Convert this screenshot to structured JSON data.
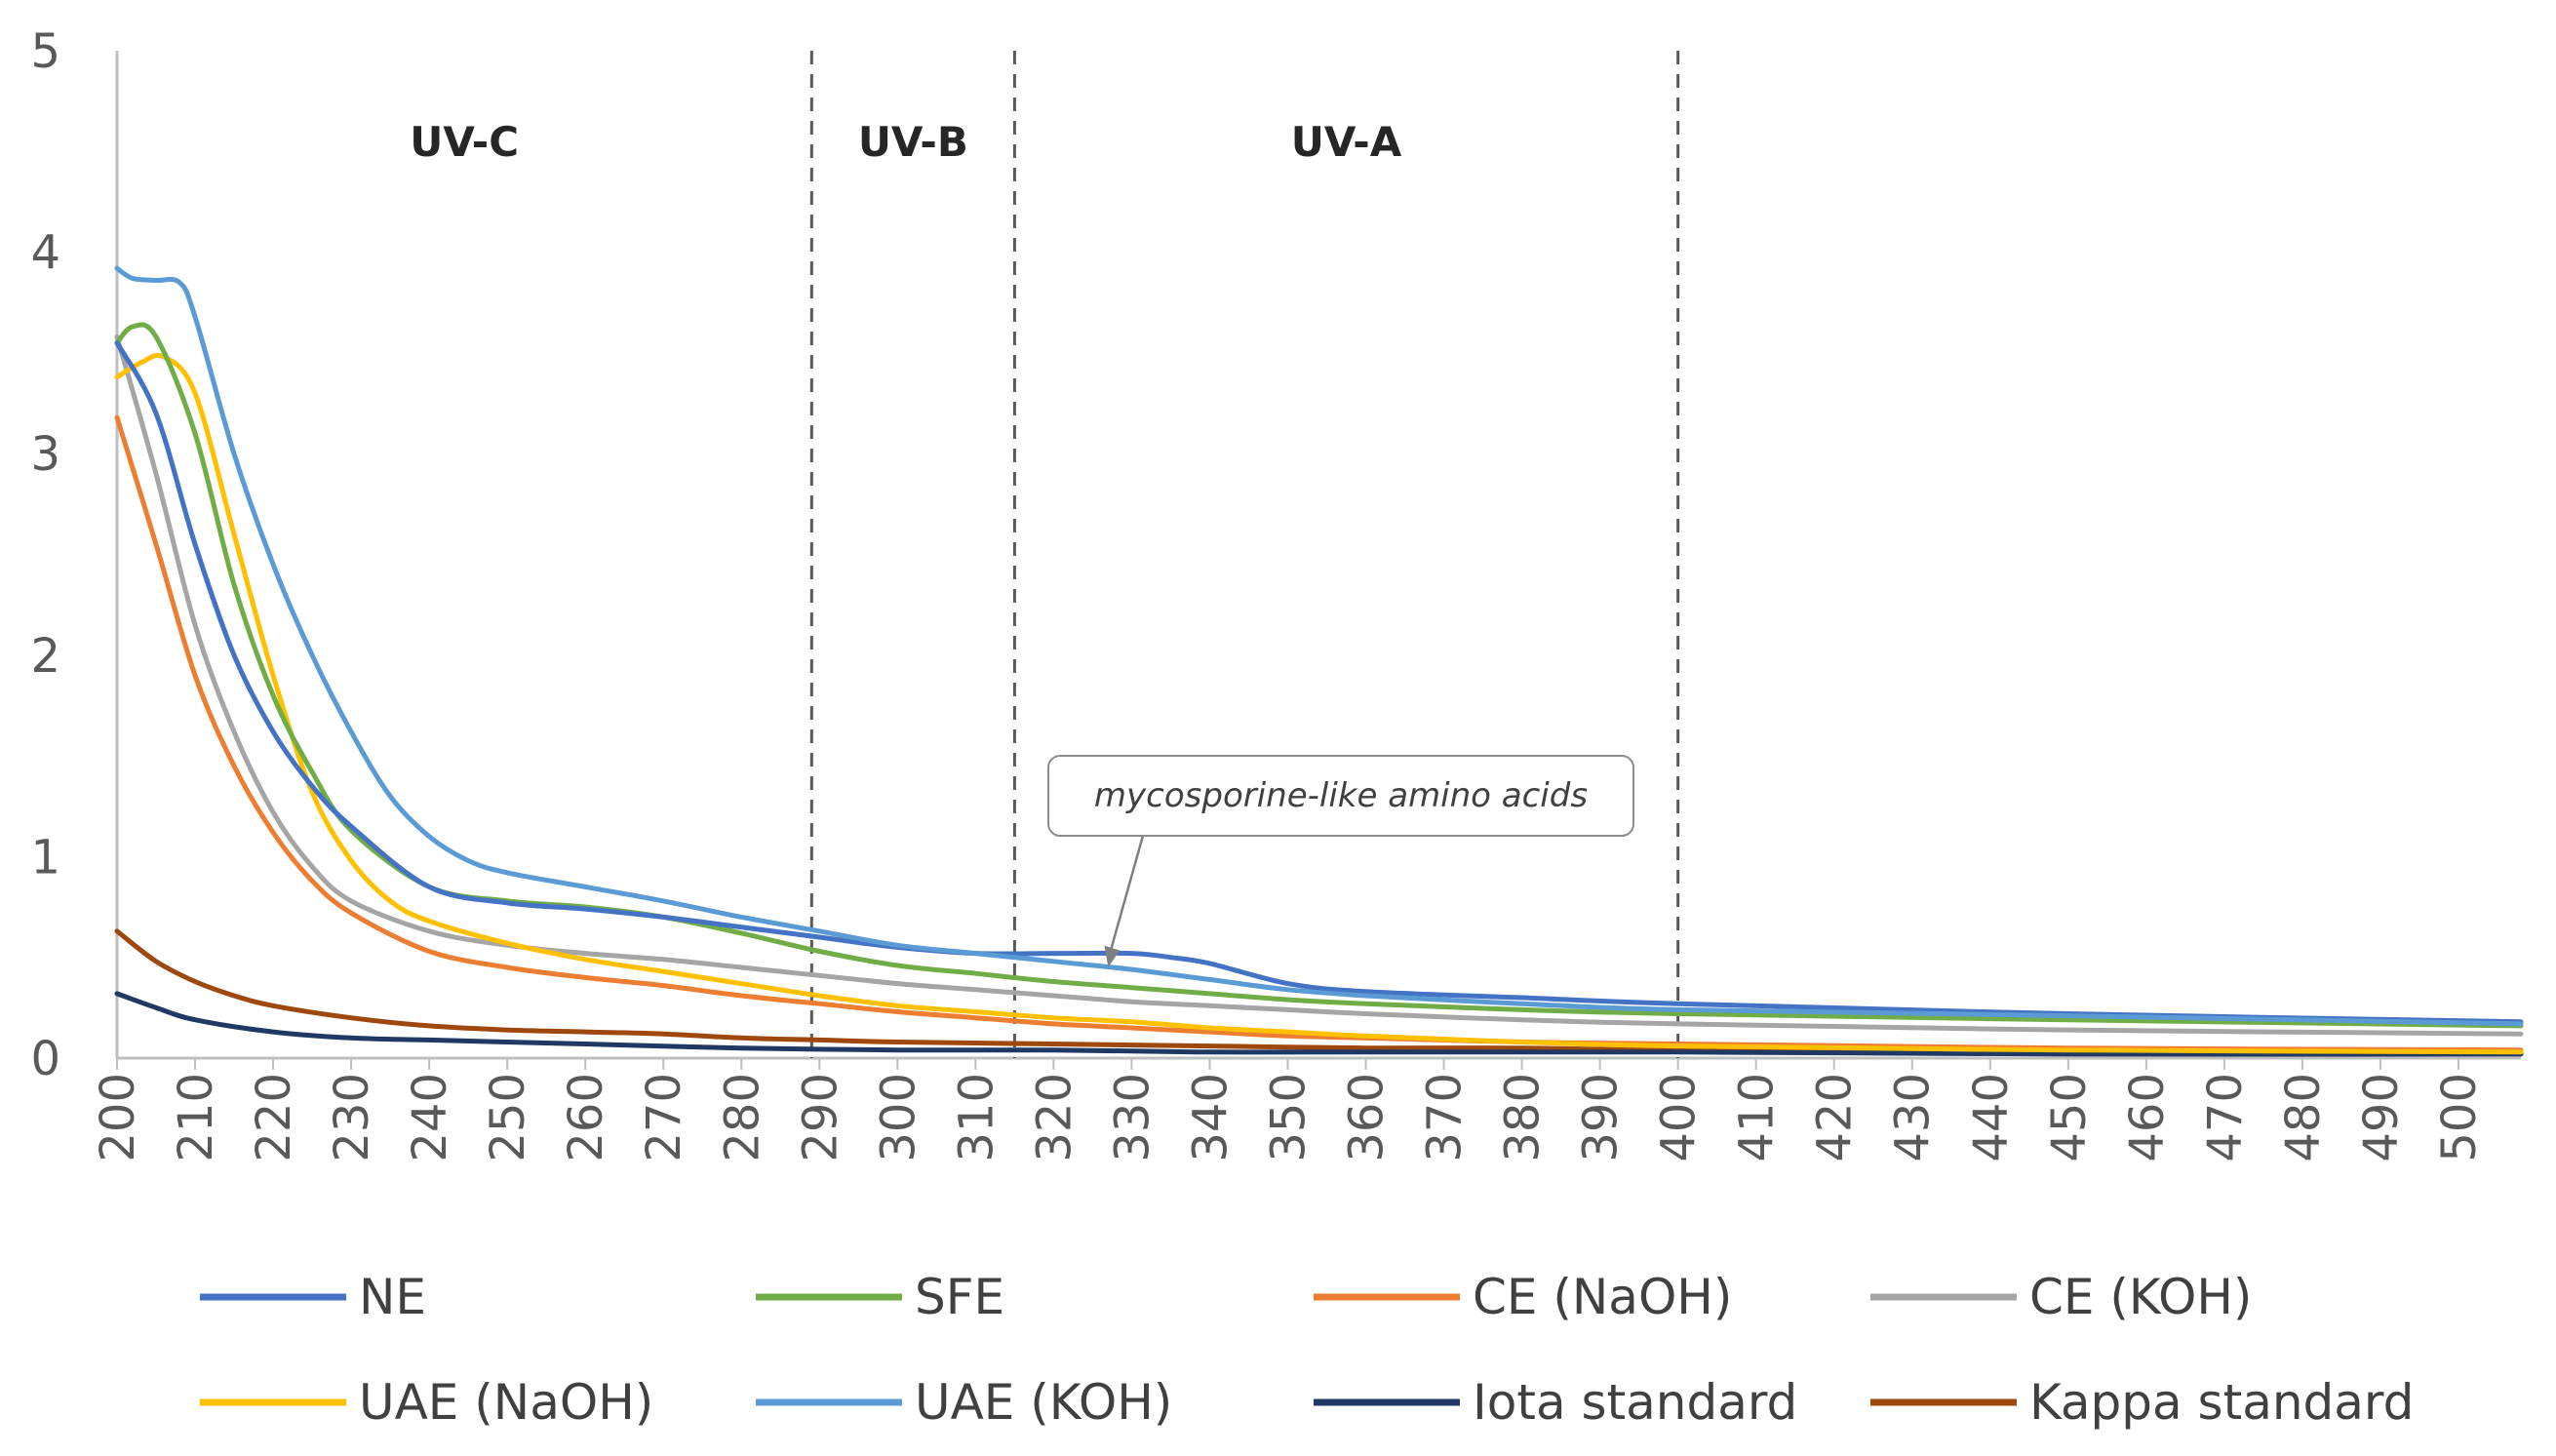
{
  "chart_data": {
    "type": "line",
    "title": "",
    "xlabel": "",
    "ylabel": "",
    "xlim": [
      200,
      508
    ],
    "ylim": [
      0,
      5
    ],
    "x_ticks": [
      200,
      210,
      220,
      230,
      240,
      250,
      260,
      270,
      280,
      290,
      300,
      310,
      320,
      330,
      340,
      350,
      360,
      370,
      380,
      390,
      400,
      410,
      420,
      430,
      440,
      450,
      460,
      470,
      480,
      490,
      500
    ],
    "y_ticks": [
      0,
      1,
      2,
      3,
      4,
      5
    ],
    "grid": false,
    "legend_position": "bottom",
    "regions": [
      {
        "label": "UV-C",
        "from": 200,
        "to": 289
      },
      {
        "label": "UV-B",
        "from": 289,
        "to": 315
      },
      {
        "label": "UV-A",
        "from": 315,
        "to": 400
      }
    ],
    "divider_lines": [
      289,
      315,
      400
    ],
    "annotation": {
      "text": "mycosporine-like amino acids",
      "points_to": [
        327,
        0.52
      ]
    },
    "series": [
      {
        "name": "NE",
        "color": "#4472C4",
        "x": [
          200,
          205,
          210,
          215,
          220,
          225,
          230,
          240,
          250,
          260,
          270,
          280,
          290,
          300,
          310,
          320,
          330,
          335,
          340,
          350,
          360,
          380,
          400,
          450,
          508
        ],
        "values": [
          3.55,
          3.2,
          2.55,
          2.0,
          1.62,
          1.35,
          1.15,
          0.85,
          0.77,
          0.74,
          0.7,
          0.65,
          0.6,
          0.55,
          0.52,
          0.52,
          0.52,
          0.5,
          0.47,
          0.37,
          0.33,
          0.3,
          0.27,
          0.22,
          0.18
        ]
      },
      {
        "name": "SFE",
        "color": "#70AD47",
        "x": [
          200,
          202,
          205,
          210,
          215,
          220,
          225,
          230,
          240,
          250,
          260,
          270,
          280,
          290,
          300,
          310,
          320,
          330,
          340,
          350,
          360,
          380,
          400,
          450,
          508
        ],
        "values": [
          3.55,
          3.63,
          3.58,
          3.1,
          2.35,
          1.8,
          1.42,
          1.13,
          0.85,
          0.78,
          0.75,
          0.7,
          0.62,
          0.53,
          0.46,
          0.42,
          0.38,
          0.35,
          0.32,
          0.29,
          0.27,
          0.24,
          0.22,
          0.19,
          0.16
        ]
      },
      {
        "name": "CE (NaOH)",
        "color": "#ED7D31",
        "x": [
          200,
          205,
          210,
          215,
          220,
          225,
          230,
          240,
          250,
          260,
          270,
          280,
          290,
          300,
          310,
          320,
          330,
          340,
          350,
          360,
          380,
          400,
          450,
          508
        ],
        "values": [
          3.18,
          2.55,
          1.9,
          1.45,
          1.12,
          0.88,
          0.72,
          0.53,
          0.45,
          0.4,
          0.36,
          0.31,
          0.27,
          0.23,
          0.2,
          0.17,
          0.15,
          0.13,
          0.11,
          0.1,
          0.08,
          0.07,
          0.05,
          0.04
        ]
      },
      {
        "name": "CE (KOH)",
        "color": "#A5A5A5",
        "x": [
          200,
          205,
          210,
          215,
          220,
          225,
          230,
          240,
          250,
          260,
          270,
          280,
          290,
          300,
          310,
          320,
          330,
          340,
          350,
          360,
          380,
          400,
          450,
          508
        ],
        "values": [
          3.58,
          2.9,
          2.15,
          1.62,
          1.22,
          0.95,
          0.78,
          0.63,
          0.56,
          0.52,
          0.49,
          0.45,
          0.41,
          0.37,
          0.34,
          0.31,
          0.28,
          0.26,
          0.24,
          0.22,
          0.19,
          0.17,
          0.14,
          0.12
        ]
      },
      {
        "name": "UAE (NaOH)",
        "color": "#FFC000",
        "x": [
          200,
          203,
          206,
          210,
          215,
          220,
          225,
          230,
          235,
          240,
          250,
          260,
          270,
          280,
          290,
          300,
          310,
          320,
          330,
          340,
          350,
          360,
          380,
          400,
          450,
          508
        ],
        "values": [
          3.38,
          3.45,
          3.48,
          3.3,
          2.6,
          1.9,
          1.32,
          0.98,
          0.78,
          0.68,
          0.57,
          0.49,
          0.43,
          0.37,
          0.31,
          0.26,
          0.23,
          0.2,
          0.18,
          0.15,
          0.13,
          0.11,
          0.08,
          0.06,
          0.04,
          0.03
        ]
      },
      {
        "name": "UAE (KOH)",
        "color": "#5B9BD5",
        "x": [
          200,
          202,
          205,
          208,
          210,
          215,
          220,
          225,
          230,
          235,
          240,
          245,
          250,
          260,
          270,
          280,
          290,
          300,
          310,
          320,
          330,
          340,
          350,
          360,
          380,
          400,
          450,
          508
        ],
        "values": [
          3.92,
          3.87,
          3.86,
          3.85,
          3.68,
          3.0,
          2.45,
          2.0,
          1.62,
          1.3,
          1.1,
          0.98,
          0.92,
          0.85,
          0.78,
          0.7,
          0.63,
          0.56,
          0.52,
          0.48,
          0.44,
          0.39,
          0.34,
          0.31,
          0.27,
          0.24,
          0.21,
          0.17
        ]
      },
      {
        "name": "Iota standard",
        "color": "#203864",
        "x": [
          200,
          205,
          210,
          220,
          230,
          240,
          250,
          260,
          280,
          300,
          320,
          340,
          360,
          400,
          450,
          508
        ],
        "values": [
          0.32,
          0.25,
          0.19,
          0.13,
          0.1,
          0.09,
          0.08,
          0.07,
          0.05,
          0.04,
          0.04,
          0.03,
          0.03,
          0.03,
          0.02,
          0.02
        ]
      },
      {
        "name": "Kappa standard",
        "color": "#9E480E",
        "x": [
          200,
          205,
          210,
          215,
          220,
          230,
          240,
          250,
          260,
          270,
          280,
          290,
          300,
          320,
          340,
          360,
          380,
          400,
          450,
          508
        ],
        "values": [
          0.63,
          0.48,
          0.38,
          0.31,
          0.26,
          0.2,
          0.16,
          0.14,
          0.13,
          0.12,
          0.1,
          0.09,
          0.08,
          0.07,
          0.06,
          0.05,
          0.05,
          0.04,
          0.04,
          0.03
        ]
      }
    ]
  }
}
